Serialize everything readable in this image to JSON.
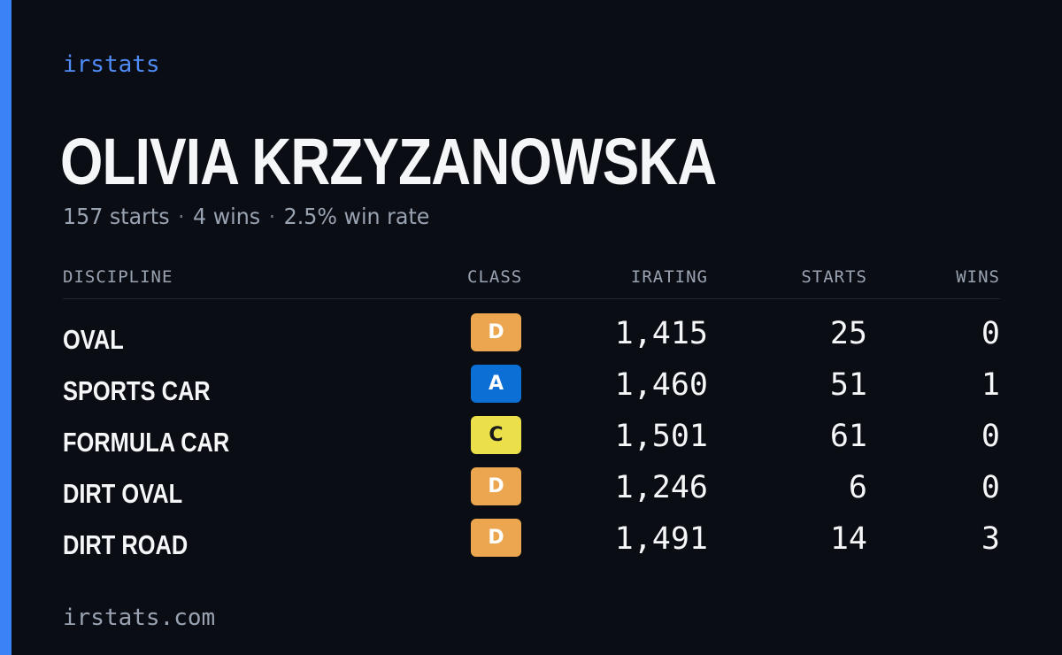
{
  "brand": "irstats",
  "player": {
    "name": "OLIVIA KRZYZANOWSKA",
    "starts_text": "157 starts",
    "wins_text": "4 wins",
    "win_rate_text": "2.5% win rate",
    "separator": "·"
  },
  "table": {
    "headers": {
      "discipline": "DISCIPLINE",
      "class": "CLASS",
      "irating": "IRATING",
      "starts": "STARTS",
      "wins": "WINS"
    },
    "rows": [
      {
        "discipline": "OVAL",
        "class": "D",
        "irating": "1,415",
        "starts": "25",
        "wins": "0"
      },
      {
        "discipline": "SPORTS CAR",
        "class": "A",
        "irating": "1,460",
        "starts": "51",
        "wins": "1"
      },
      {
        "discipline": "FORMULA CAR",
        "class": "C",
        "irating": "1,501",
        "starts": "61",
        "wins": "0"
      },
      {
        "discipline": "DIRT OVAL",
        "class": "D",
        "irating": "1,246",
        "starts": "6",
        "wins": "0"
      },
      {
        "discipline": "DIRT ROAD",
        "class": "D",
        "irating": "1,491",
        "starts": "14",
        "wins": "3"
      }
    ]
  },
  "class_colors": {
    "A": {
      "bg": "#0b6fd6",
      "fg": "#ffffff"
    },
    "C": {
      "bg": "#ebe04a",
      "fg": "#1a1a1a"
    },
    "D": {
      "bg": "#eca64f",
      "fg": "#ffffff"
    }
  },
  "accent_color": "#3b82f6",
  "footer": "irstats.com"
}
